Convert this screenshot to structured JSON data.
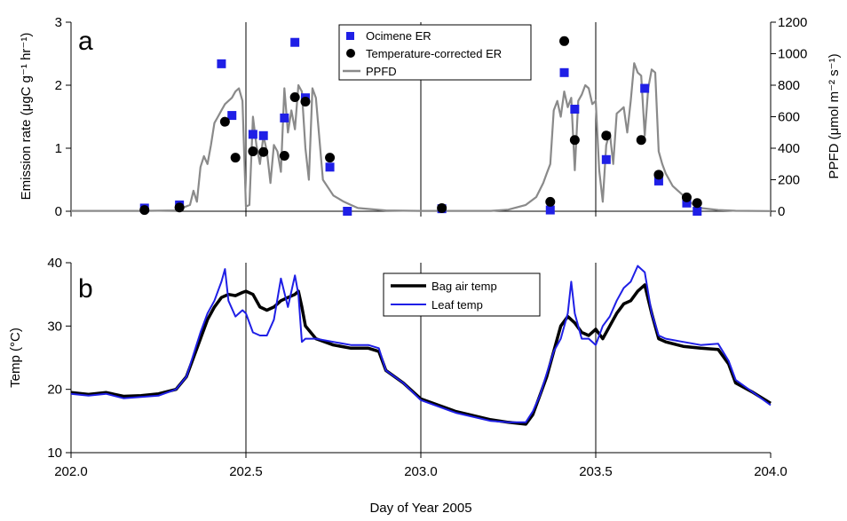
{
  "chart_data": [
    {
      "panel_letter": "a",
      "type": "scatter",
      "x_range": [
        202.0,
        204.0
      ],
      "ylabel": "Emission rate (μgC g⁻¹ hr⁻¹)",
      "ylabel_right": "PPFD (μmol m⁻² s⁻¹)",
      "ylim": [
        0,
        3
      ],
      "y_ticks": [
        "0",
        "1",
        "2",
        "3"
      ],
      "y2lim": [
        0,
        1200
      ],
      "y2_ticks": [
        "0",
        "200",
        "400",
        "600",
        "800",
        "1000",
        "1200"
      ],
      "vertical_lines": [
        202.5,
        203.0,
        203.5
      ],
      "legend_position": "top-center",
      "legend": [
        "Ocimene ER",
        "Temperature-corrected ER",
        "PPFD"
      ],
      "series": [
        {
          "name": "Ocimene ER",
          "type": "scatter",
          "marker": "square",
          "color": "#1f1fe6",
          "x": [
            202.21,
            202.31,
            202.43,
            202.46,
            202.52,
            202.55,
            202.61,
            202.64,
            202.67,
            202.74,
            202.79,
            203.06,
            203.37,
            203.41,
            203.44,
            203.53,
            203.64,
            203.68,
            203.76,
            203.79
          ],
          "y": [
            0.05,
            0.1,
            2.34,
            1.52,
            1.22,
            1.2,
            1.48,
            2.68,
            1.8,
            0.7,
            0.0,
            0.04,
            0.02,
            2.2,
            1.62,
            0.82,
            1.95,
            0.48,
            0.13,
            0.0
          ]
        },
        {
          "name": "Temperature-corrected ER",
          "type": "scatter",
          "marker": "circle",
          "color": "#000000",
          "x": [
            202.21,
            202.31,
            202.44,
            202.47,
            202.52,
            202.55,
            202.61,
            202.64,
            202.67,
            202.74,
            203.06,
            203.37,
            203.41,
            203.44,
            203.53,
            203.63,
            203.68,
            203.76,
            203.79
          ],
          "y": [
            0.02,
            0.06,
            1.42,
            0.85,
            0.95,
            0.94,
            0.88,
            1.81,
            1.74,
            0.85,
            0.05,
            0.15,
            2.7,
            1.13,
            1.2,
            1.13,
            0.58,
            0.22,
            0.13
          ]
        },
        {
          "name": "PPFD",
          "type": "line",
          "axis": "right",
          "color": "#8a8a8a",
          "x": [
            202.0,
            202.2,
            202.3,
            202.34,
            202.35,
            202.36,
            202.37,
            202.38,
            202.39,
            202.4,
            202.41,
            202.42,
            202.43,
            202.44,
            202.45,
            202.46,
            202.47,
            202.48,
            202.49,
            202.5,
            202.51,
            202.52,
            202.53,
            202.54,
            202.55,
            202.56,
            202.57,
            202.58,
            202.59,
            202.6,
            202.61,
            202.62,
            202.63,
            202.64,
            202.65,
            202.66,
            202.67,
            202.68,
            202.69,
            202.7,
            202.72,
            202.75,
            202.78,
            202.8,
            202.82,
            202.9,
            203.0,
            203.1,
            203.2,
            203.25,
            203.3,
            203.33,
            203.35,
            203.36,
            203.37,
            203.38,
            203.39,
            203.4,
            203.41,
            203.42,
            203.43,
            203.44,
            203.45,
            203.46,
            203.47,
            203.48,
            203.49,
            203.5,
            203.51,
            203.52,
            203.53,
            203.54,
            203.55,
            203.56,
            203.57,
            203.58,
            203.59,
            203.6,
            203.61,
            203.62,
            203.63,
            203.64,
            203.65,
            203.66,
            203.67,
            203.68,
            203.69,
            203.7,
            203.72,
            203.74,
            203.76,
            203.78,
            203.8,
            203.85,
            203.9,
            204.0
          ],
          "y": [
            2,
            2,
            5,
            40,
            130,
            60,
            280,
            350,
            300,
            420,
            560,
            600,
            640,
            680,
            700,
            720,
            760,
            780,
            700,
            30,
            40,
            600,
            420,
            300,
            480,
            380,
            180,
            420,
            380,
            250,
            780,
            500,
            640,
            520,
            800,
            760,
            400,
            200,
            780,
            720,
            200,
            100,
            60,
            40,
            20,
            5,
            2,
            2,
            2,
            10,
            40,
            90,
            180,
            240,
            300,
            640,
            700,
            600,
            760,
            660,
            720,
            260,
            700,
            740,
            800,
            780,
            680,
            700,
            260,
            60,
            420,
            500,
            300,
            620,
            640,
            660,
            500,
            700,
            940,
            880,
            860,
            480,
            780,
            900,
            880,
            380,
            300,
            240,
            160,
            120,
            80,
            40,
            20,
            8,
            3,
            1
          ]
        }
      ]
    },
    {
      "panel_letter": "b",
      "type": "line",
      "x_range": [
        202.0,
        204.0
      ],
      "x_ticks": [
        "202.0",
        "202.5",
        "203.0",
        "203.5",
        "204.0"
      ],
      "xlabel": "Day of Year 2005",
      "ylabel": "Temp (°C)",
      "ylim": [
        10,
        40
      ],
      "y_ticks": [
        "10",
        "20",
        "30",
        "40"
      ],
      "vertical_lines": [
        202.5,
        203.0,
        203.5
      ],
      "legend_position": "top-center",
      "legend": [
        "Bag air temp",
        "Leaf temp"
      ],
      "series": [
        {
          "name": "Bag air temp",
          "color": "#000000",
          "x": [
            202.0,
            202.05,
            202.1,
            202.15,
            202.2,
            202.25,
            202.3,
            202.33,
            202.35,
            202.37,
            202.39,
            202.41,
            202.43,
            202.45,
            202.47,
            202.49,
            202.5,
            202.52,
            202.54,
            202.56,
            202.58,
            202.6,
            202.62,
            202.64,
            202.65,
            202.66,
            202.67,
            202.7,
            202.75,
            202.8,
            202.85,
            202.88,
            202.9,
            202.95,
            203.0,
            203.1,
            203.2,
            203.25,
            203.3,
            203.32,
            203.34,
            203.36,
            203.38,
            203.4,
            203.42,
            203.44,
            203.46,
            203.48,
            203.5,
            203.52,
            203.54,
            203.56,
            203.58,
            203.6,
            203.62,
            203.64,
            203.66,
            203.68,
            203.7,
            203.75,
            203.8,
            203.85,
            203.88,
            203.9,
            203.95,
            204.0
          ],
          "y": [
            19.5,
            19.2,
            19.5,
            18.9,
            19.0,
            19.3,
            20.0,
            22.0,
            25.0,
            28.0,
            31.0,
            33.0,
            34.5,
            35.0,
            34.8,
            35.3,
            35.5,
            35.0,
            33.0,
            32.5,
            33.0,
            34.0,
            34.5,
            35.0,
            35.5,
            33.0,
            30.0,
            28.0,
            27.0,
            26.5,
            26.5,
            26.0,
            23.0,
            21.0,
            18.5,
            16.5,
            15.2,
            14.8,
            14.5,
            16.0,
            19.0,
            22.0,
            26.0,
            30.0,
            31.5,
            30.5,
            29.0,
            28.5,
            29.5,
            28.0,
            30.0,
            32.0,
            33.5,
            34.0,
            35.5,
            36.5,
            32.0,
            28.0,
            27.5,
            26.8,
            26.5,
            26.3,
            24.0,
            21.0,
            19.5,
            17.8
          ]
        },
        {
          "name": "Leaf temp",
          "color": "#1f1fe6",
          "x": [
            202.0,
            202.05,
            202.1,
            202.15,
            202.2,
            202.25,
            202.3,
            202.33,
            202.35,
            202.37,
            202.39,
            202.41,
            202.43,
            202.44,
            202.45,
            202.47,
            202.49,
            202.5,
            202.52,
            202.54,
            202.56,
            202.58,
            202.6,
            202.62,
            202.64,
            202.65,
            202.66,
            202.67,
            202.7,
            202.75,
            202.8,
            202.85,
            202.88,
            202.9,
            202.95,
            203.0,
            203.1,
            203.2,
            203.25,
            203.3,
            203.32,
            203.34,
            203.36,
            203.38,
            203.4,
            203.42,
            203.43,
            203.44,
            203.46,
            203.48,
            203.5,
            203.52,
            203.54,
            203.56,
            203.58,
            203.6,
            203.62,
            203.64,
            203.66,
            203.68,
            203.7,
            203.75,
            203.8,
            203.85,
            203.88,
            203.9,
            203.95,
            204.0
          ],
          "y": [
            19.3,
            19.0,
            19.3,
            18.6,
            18.8,
            19.0,
            20.0,
            22.0,
            25.5,
            29.0,
            32.0,
            34.0,
            37.0,
            39.0,
            34.0,
            31.5,
            32.5,
            32.0,
            29.0,
            28.5,
            28.5,
            31.0,
            37.5,
            33.0,
            38.0,
            35.0,
            27.5,
            28.0,
            28.0,
            27.5,
            27.0,
            27.0,
            26.5,
            23.0,
            21.0,
            18.3,
            16.3,
            15.0,
            14.8,
            14.8,
            16.5,
            19.0,
            22.5,
            26.0,
            28.0,
            32.0,
            37.0,
            32.0,
            28.0,
            28.0,
            27.0,
            30.0,
            31.5,
            34.0,
            36.0,
            37.0,
            39.5,
            38.5,
            32.0,
            28.5,
            28.0,
            27.5,
            27.0,
            27.2,
            24.5,
            21.5,
            19.5,
            17.5
          ]
        }
      ]
    }
  ]
}
